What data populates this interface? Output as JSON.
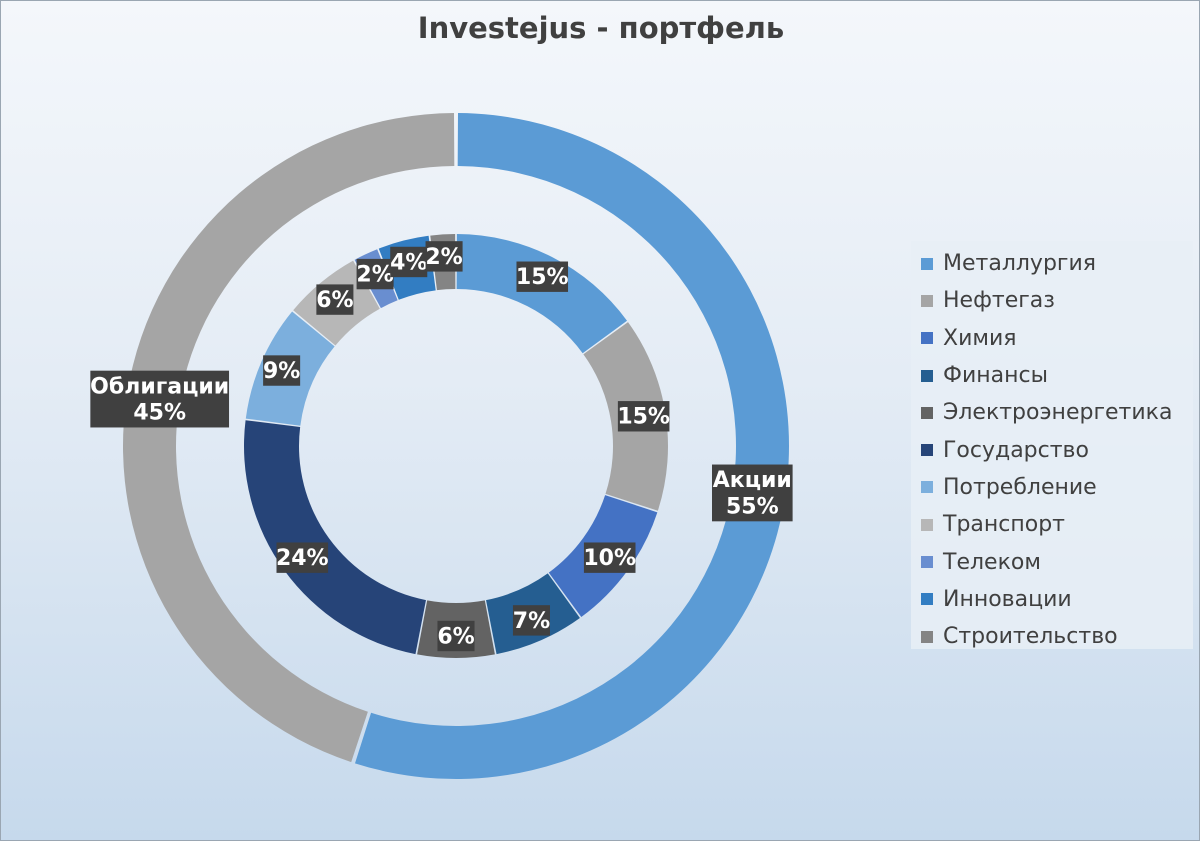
{
  "chart_data": {
    "type": "donut",
    "title": "Investejus - портфель",
    "rings": [
      {
        "ring": "outer",
        "slices": [
          {
            "label": "Акции",
            "value": 55,
            "display": "55%",
            "color": "#5b9bd5"
          },
          {
            "label": "Облигации",
            "value": 45,
            "display": "45%",
            "color": "#a5a5a5"
          }
        ]
      },
      {
        "ring": "inner",
        "slices": [
          {
            "label": "Металлургия",
            "value": 15,
            "display": "15%",
            "color": "#5b9bd5"
          },
          {
            "label": "Нефтегаз",
            "value": 15,
            "display": "15%",
            "color": "#a5a5a5"
          },
          {
            "label": "Химия",
            "value": 10,
            "display": "10%",
            "color": "#4472c4"
          },
          {
            "label": "Финансы",
            "value": 7,
            "display": "7%",
            "color": "#255e91"
          },
          {
            "label": "Электроэнергетика",
            "value": 6,
            "display": "6%",
            "color": "#636363"
          },
          {
            "label": "Государство",
            "value": 24,
            "display": "24%",
            "color": "#264478"
          },
          {
            "label": "Потребление",
            "value": 9,
            "display": "9%",
            "color": "#7cafdd"
          },
          {
            "label": "Транспорт",
            "value": 6,
            "display": "6%",
            "color": "#b7b7b7"
          },
          {
            "label": "Телеком",
            "value": 2,
            "display": "2%",
            "color": "#698ed0"
          },
          {
            "label": "Инновации",
            "value": 4,
            "display": "4%",
            "color": "#327dc2"
          },
          {
            "label": "Строительство",
            "value": 2,
            "display": "2%",
            "color": "#848484"
          }
        ]
      }
    ],
    "legend": {
      "position": "right",
      "items": [
        {
          "label": "Металлургия",
          "color": "#5b9bd5"
        },
        {
          "label": "Нефтегаз",
          "color": "#a5a5a5"
        },
        {
          "label": "Химия",
          "color": "#4472c4"
        },
        {
          "label": "Финансы",
          "color": "#255e91"
        },
        {
          "label": "Электроэнергетика",
          "color": "#636363"
        },
        {
          "label": "Государство",
          "color": "#264478"
        },
        {
          "label": "Потребление",
          "color": "#7cafdd"
        },
        {
          "label": "Транспорт",
          "color": "#b7b7b7"
        },
        {
          "label": "Телеком",
          "color": "#698ed0"
        },
        {
          "label": "Инновации",
          "color": "#327dc2"
        },
        {
          "label": "Строительство",
          "color": "#848484"
        }
      ]
    }
  }
}
